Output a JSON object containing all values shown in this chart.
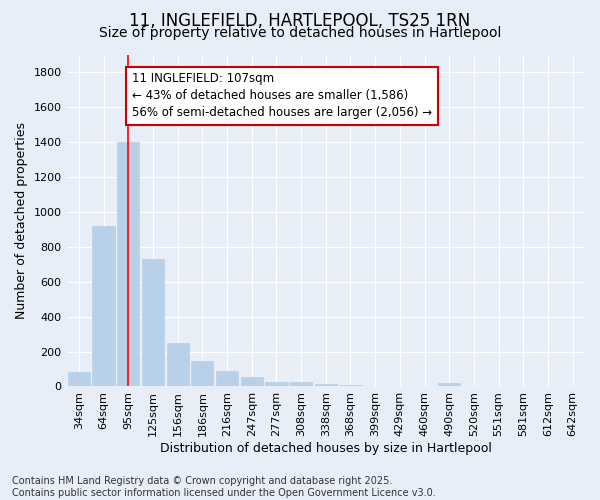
{
  "title_line1": "11, INGLEFIELD, HARTLEPOOL, TS25 1RN",
  "title_line2": "Size of property relative to detached houses in Hartlepool",
  "xlabel": "Distribution of detached houses by size in Hartlepool",
  "ylabel": "Number of detached properties",
  "categories": [
    "34sqm",
    "64sqm",
    "95sqm",
    "125sqm",
    "156sqm",
    "186sqm",
    "216sqm",
    "247sqm",
    "277sqm",
    "308sqm",
    "338sqm",
    "368sqm",
    "399sqm",
    "429sqm",
    "460sqm",
    "490sqm",
    "520sqm",
    "551sqm",
    "581sqm",
    "612sqm",
    "642sqm"
  ],
  "values": [
    85,
    920,
    1400,
    730,
    250,
    145,
    90,
    53,
    28,
    28,
    13,
    8,
    3,
    0,
    0,
    18,
    0,
    0,
    0,
    0,
    0
  ],
  "bar_color": "#b8d0e8",
  "bar_edge_color": "#b8d0e8",
  "red_line_x": 2,
  "ylim": [
    0,
    1900
  ],
  "yticks": [
    0,
    200,
    400,
    600,
    800,
    1000,
    1200,
    1400,
    1600,
    1800
  ],
  "annotation_text": "11 INGLEFIELD: 107sqm\n← 43% of detached houses are smaller (1,586)\n56% of semi-detached houses are larger (2,056) →",
  "annotation_box_facecolor": "#ffffff",
  "annotation_box_edgecolor": "#cc0000",
  "footnote": "Contains HM Land Registry data © Crown copyright and database right 2025.\nContains public sector information licensed under the Open Government Licence v3.0.",
  "background_color": "#e8eef8",
  "grid_color": "#ffffff",
  "title_fontsize": 12,
  "subtitle_fontsize": 10,
  "tick_fontsize": 8,
  "ylabel_fontsize": 9,
  "xlabel_fontsize": 9,
  "annotation_fontsize": 8.5,
  "footnote_fontsize": 7
}
